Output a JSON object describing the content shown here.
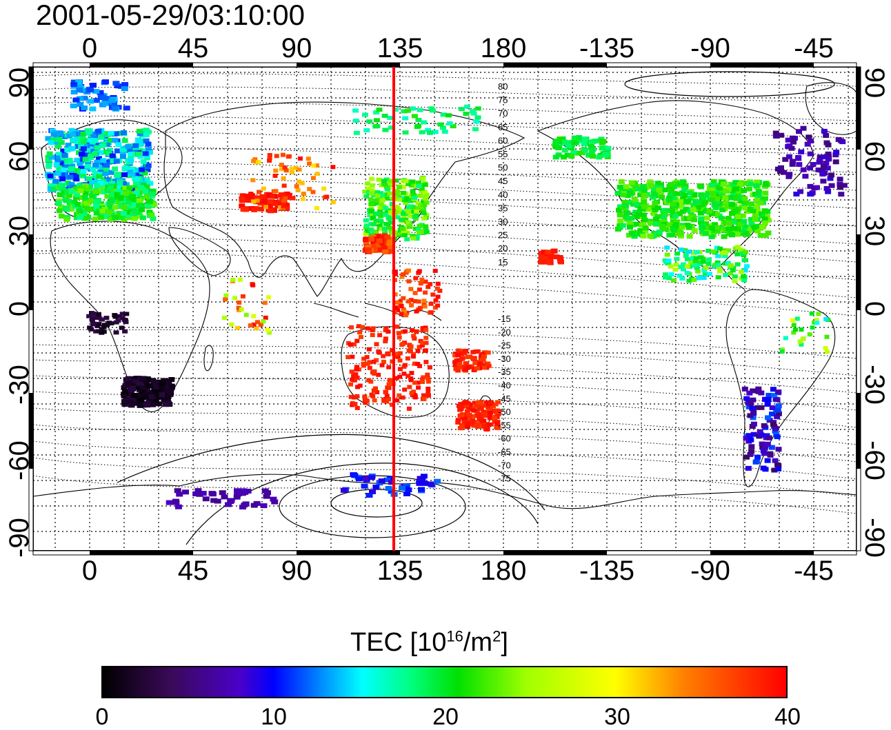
{
  "title": "2001-05-29/03:10:00",
  "axes": {
    "lon_ticks": [
      "0",
      "45",
      "90",
      "135",
      "180",
      "-135",
      "-90",
      "-45"
    ],
    "lat_ticks": [
      "90",
      "60",
      "30",
      "0",
      "-30",
      "-60",
      "-90"
    ]
  },
  "contour_labels": {
    "north": [
      "80",
      "75",
      "70",
      "65",
      "60",
      "55",
      "50",
      "45",
      "40",
      "35",
      "30",
      "25",
      "20",
      "15"
    ],
    "south": [
      "-15",
      "-20",
      "-25",
      "-30",
      "-35",
      "-40",
      "-45",
      "-50",
      "-55",
      "-60",
      "-65",
      "-70",
      "-75"
    ]
  },
  "marker": {
    "longitude": 132,
    "color": "#ff0000"
  },
  "colorbar": {
    "title_prefix": "TEC  [10",
    "title_exp1": "16",
    "title_mid": "/m",
    "title_exp2": "2",
    "title_suffix": "]",
    "ticks": [
      "0",
      "10",
      "20",
      "30",
      "40"
    ],
    "range": [
      0,
      40
    ]
  }
}
